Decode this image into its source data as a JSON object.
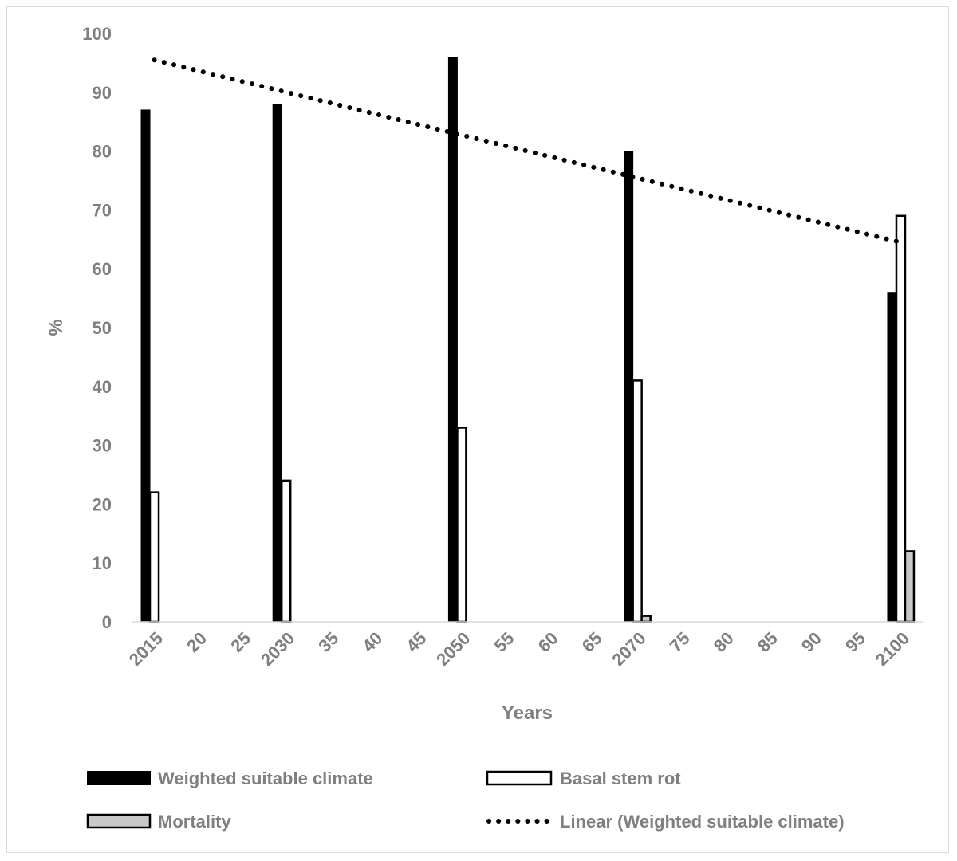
{
  "chart_data": {
    "type": "bar",
    "title": "",
    "xlabel": "Years",
    "ylabel": "%",
    "ylim": [
      0,
      100
    ],
    "yticks": [
      "0",
      "10",
      "20",
      "30",
      "40",
      "50",
      "60",
      "70",
      "80",
      "90",
      "100"
    ],
    "categories": [
      "2015",
      "20",
      "25",
      "2030",
      "35",
      "40",
      "45",
      "2050",
      "55",
      "60",
      "65",
      "2070",
      "75",
      "80",
      "85",
      "90",
      "95",
      "2100"
    ],
    "series": [
      {
        "name": "Weighted suitable climate",
        "style": "solid",
        "color": "#000000",
        "values": [
          87,
          0,
          0,
          88,
          0,
          0,
          0,
          96,
          0,
          0,
          0,
          80,
          0,
          0,
          0,
          0,
          0,
          56
        ]
      },
      {
        "name": "Basal stem rot",
        "style": "outline",
        "color": "#ffffff",
        "values": [
          22,
          0,
          0,
          24,
          0,
          0,
          0,
          33,
          0,
          0,
          0,
          41,
          0,
          0,
          0,
          0,
          0,
          69
        ]
      },
      {
        "name": "Mortality",
        "style": "grey",
        "color": "#c8c8c8",
        "values": [
          0,
          0,
          0,
          0,
          0,
          0,
          0,
          0,
          0,
          0,
          0,
          1,
          0,
          0,
          0,
          0,
          0,
          12
        ]
      }
    ],
    "trendline": {
      "name": "Linear (Weighted suitable climate)",
      "style": "dotted",
      "start": 95.5,
      "end": 64.5
    },
    "legend": {
      "position": "bottom",
      "entries": [
        "Weighted suitable climate",
        "Basal stem rot",
        "Mortality",
        "Linear (Weighted suitable climate)"
      ]
    }
  }
}
